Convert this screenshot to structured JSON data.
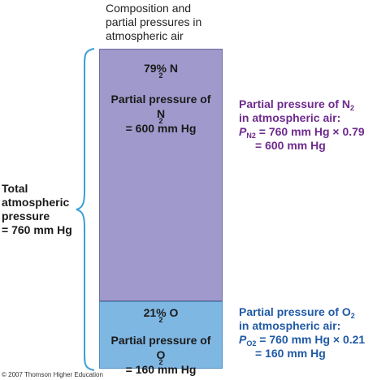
{
  "heading": {
    "line1": "Composition and",
    "line2": "partial pressures in",
    "line3": "atmospheric air"
  },
  "left_label": {
    "line1": "Total",
    "line2": "atmospheric",
    "line3": "pressure",
    "line4": "= 760 mm Hg"
  },
  "n2_box": {
    "percent": "79% N",
    "percent_sub": "2",
    "pp_line1": "Partial pressure of",
    "pp_line2_main": "N",
    "pp_line2_sub": "2",
    "pp_line2_rest": " = 600 mm Hg",
    "share": 0.79,
    "color": "#9f99cc"
  },
  "o2_box": {
    "percent": "21% O",
    "percent_sub": "2",
    "pp_line1": "Partial pressure of",
    "pp_line2_main": "O",
    "pp_line2_sub": "2",
    "pp_line2_rest": " = 160 mm Hg",
    "share": 0.21,
    "color": "#7fb7e3"
  },
  "n2_equation": {
    "line1_main": "Partial pressure of N",
    "line1_sub": "2",
    "line2": "in atmospheric air:",
    "line3_p": "P",
    "line3_sub": "N2",
    "line3_rest": " = 760 mm Hg × 0.79",
    "line4": "= 600 mm Hg",
    "color": "#6e2a8d"
  },
  "o2_equation": {
    "line1_main": "Partial pressure of O",
    "line1_sub": "2",
    "line2": "in atmospheric air:",
    "line3_p": "P",
    "line3_sub": "O2",
    "line3_rest": " = 760 mm Hg × 0.21",
    "line4": "= 160 mm Hg",
    "color": "#1f5aa6"
  },
  "copyright": "© 2007 Thomson Higher Education"
}
